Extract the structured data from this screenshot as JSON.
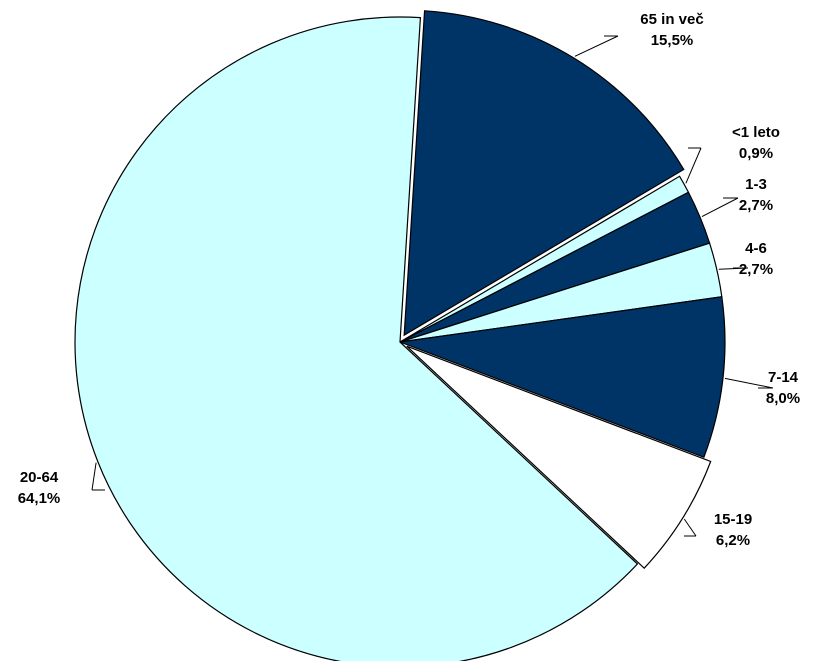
{
  "chart_data": {
    "type": "pie",
    "title": "",
    "start_angle_deg": 86.4,
    "slices": [
      {
        "label": "65 in več",
        "value": 15.5,
        "value_label": "15,5%",
        "color": "#003366"
      },
      {
        "label": "<1 leto",
        "value": 0.9,
        "value_label": "0,9%",
        "color": "#CCFFFF"
      },
      {
        "label": "1-3",
        "value": 2.7,
        "value_label": "2,7%",
        "color": "#003366"
      },
      {
        "label": "4-6",
        "value": 2.7,
        "value_label": "2,7%",
        "color": "#CCFFFF"
      },
      {
        "label": "7-14",
        "value": 8.0,
        "value_label": "8,0%",
        "color": "#003366"
      },
      {
        "label": "15-19",
        "value": 6.2,
        "value_label": "6,2%",
        "color": "#FFFFFF"
      },
      {
        "label": "20-64",
        "value": 64.1,
        "value_label": "64,1%",
        "color": "#CCFFFF"
      }
    ]
  }
}
